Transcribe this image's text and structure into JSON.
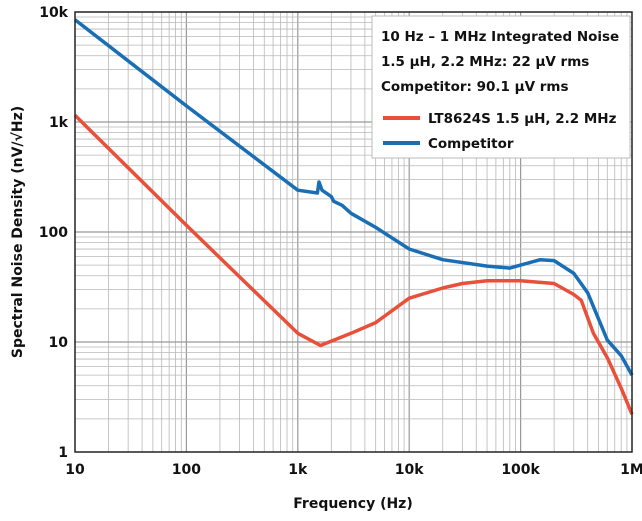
{
  "chart_data": {
    "type": "line",
    "title": "",
    "xlabel": "Frequency (Hz)",
    "ylabel": "Spectral Noise Density (nV/√Hz)",
    "xscale": "log",
    "yscale": "log",
    "xlim": [
      10,
      1000000
    ],
    "ylim": [
      1,
      10000
    ],
    "grid": true,
    "x_tick_labels": [
      "10",
      "100",
      "1k",
      "10k",
      "100k",
      "1M"
    ],
    "x_ticks": [
      10,
      100,
      1000,
      10000,
      100000,
      1000000
    ],
    "y_tick_labels": [
      "1",
      "10",
      "100",
      "1k",
      "10k"
    ],
    "y_ticks": [
      1,
      10,
      100,
      1000,
      10000
    ],
    "legend_position": "top-right",
    "annotation": [
      "10 Hz – 1 MHz Integrated Noise",
      "1.5 µH, 2.2 MHz: 22 µV rms",
      "Competitor: 90.1 µV rms"
    ],
    "series": [
      {
        "name": "LT8624S 1.5 µH, 2.2 MHz",
        "color": "#e8503a",
        "x": [
          10,
          100,
          1000,
          1600,
          3000,
          5000,
          10000,
          20000,
          30000,
          50000,
          100000,
          200000,
          300000,
          350000,
          450000,
          600000,
          800000,
          1000000
        ],
        "y": [
          1150,
          115,
          12,
          9.3,
          12,
          15,
          25,
          31,
          34,
          36,
          36,
          34,
          27,
          24,
          12,
          7.2,
          3.8,
          2.2
        ]
      },
      {
        "name": "Competitor",
        "color": "#1a6fb4",
        "x": [
          10,
          100,
          1000,
          1500,
          1550,
          1650,
          2000,
          2100,
          2500,
          3000,
          5000,
          10000,
          20000,
          50000,
          80000,
          150000,
          200000,
          300000,
          400000,
          600000,
          800000,
          1000000
        ],
        "y": [
          8500,
          1400,
          240,
          226,
          285,
          240,
          210,
          190,
          175,
          148,
          110,
          70,
          56,
          49,
          47,
          56,
          55,
          42,
          28,
          10.4,
          7.5,
          5.0
        ]
      }
    ]
  }
}
